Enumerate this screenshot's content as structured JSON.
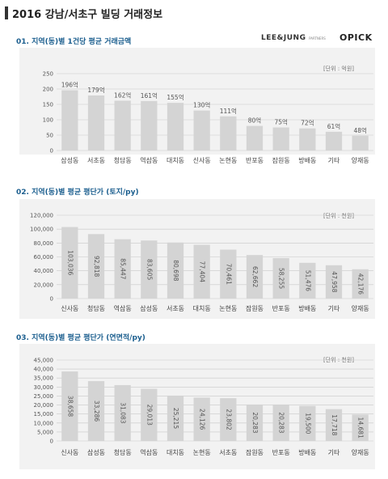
{
  "page_title": "2016 강남/서초구 빌딩 거래정보",
  "logos": {
    "lee_jung": "LEE&JUNG",
    "lee_jung_sub": "PARTNERS",
    "opick": "OPICK"
  },
  "colors": {
    "bar": "#d4d4d4",
    "panel": "#f2f2f2",
    "section_title": "#1c5f8f"
  },
  "chart_data": [
    {
      "type": "bar",
      "title": "01. 지역(동)별 1건당 평균 거래금액",
      "unit_note": "[단위 : 억원]",
      "categories": [
        "삼성동",
        "서초동",
        "청담동",
        "역삼동",
        "대치동",
        "신사동",
        "논현동",
        "반포동",
        "잠원동",
        "방배동",
        "기타",
        "양재동"
      ],
      "values": [
        196,
        179,
        162,
        161,
        155,
        130,
        111,
        80,
        75,
        72,
        61,
        48
      ],
      "value_labels": [
        "196억",
        "179억",
        "162억",
        "161억",
        "155억",
        "130억",
        "111억",
        "80억",
        "75억",
        "72억",
        "61억",
        "48억"
      ],
      "ylim": [
        0,
        250
      ],
      "yticks": [
        "0",
        "50",
        "100",
        "150",
        "200",
        "250"
      ],
      "grid": true
    },
    {
      "type": "bar",
      "title": "02. 지역(동)별 평균 평단가 (토지/py)",
      "unit_note": "[단위 : 천원]",
      "categories": [
        "신사동",
        "청담동",
        "역삼동",
        "삼성동",
        "서초동",
        "대치동",
        "논현동",
        "잠원동",
        "반포동",
        "방배동",
        "기타",
        "양재동"
      ],
      "values": [
        103036,
        92818,
        85447,
        83605,
        80698,
        77404,
        70461,
        62662,
        58255,
        51476,
        47958,
        42176
      ],
      "value_labels": [
        "103,036",
        "92,818",
        "85,447",
        "83,605",
        "80,698",
        "77,404",
        "70,461",
        "62,662",
        "58,255",
        "51,476",
        "47,958",
        "42,176"
      ],
      "ylim": [
        0,
        120000
      ],
      "yticks": [
        "0",
        "20,000",
        "40,000",
        "60,000",
        "80,000",
        "100,000",
        "120,000"
      ],
      "grid": true
    },
    {
      "type": "bar",
      "title": "03. 지역(동)별 평균 평단가 (연면적/py)",
      "unit_note": "[단위 : 천원]",
      "categories": [
        "신사동",
        "삼성동",
        "청담동",
        "역삼동",
        "대치동",
        "논현동",
        "서초동",
        "잠원동",
        "반포동",
        "방배동",
        "기타",
        "양재동"
      ],
      "values": [
        38658,
        33286,
        31083,
        29013,
        25215,
        24126,
        23802,
        20283,
        20283,
        19500,
        17718,
        14681
      ],
      "value_labels": [
        "38,658",
        "33,286",
        "31,083",
        "29,013",
        "25,215",
        "24,126",
        "23,802",
        "20,283",
        "20,283",
        "19,500",
        "17,718",
        "14,681"
      ],
      "ylim": [
        0,
        45000
      ],
      "yticks": [
        "0",
        "5,000",
        "10,000",
        "15,000",
        "20,000",
        "25,000",
        "30,000",
        "35,000",
        "40,000",
        "45,000"
      ],
      "grid": true
    }
  ]
}
